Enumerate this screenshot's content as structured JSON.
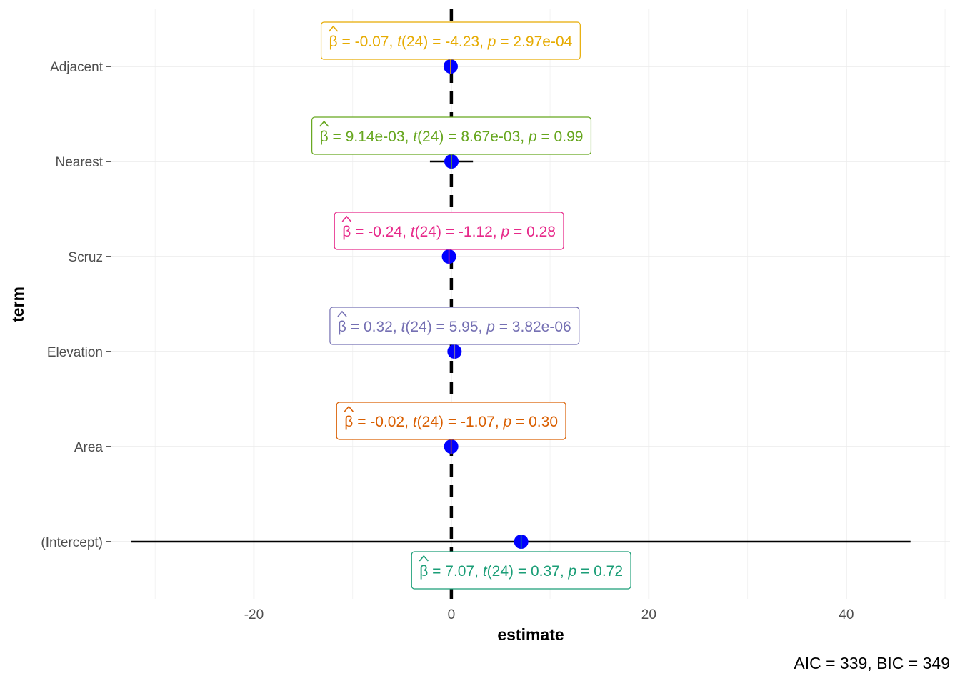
{
  "chart_data": {
    "type": "dot-whisker",
    "title": "",
    "xlabel": "estimate",
    "ylabel": "term",
    "caption": "AIC = 339, BIC = 349",
    "xlim": [
      -34.5,
      50.5
    ],
    "x_ticks": [
      -20,
      0,
      20,
      40
    ],
    "x_tick_labels": [
      "-20",
      "0",
      "20",
      "40"
    ],
    "reference_line": 0,
    "point_color": "#0000ff",
    "terms": [
      {
        "term": "Adjacent",
        "estimate": -0.07,
        "conf_low": -0.11,
        "conf_high": -0.04,
        "color": "#e6ab02",
        "label": {
          "beta": "-0.07",
          "df": "24",
          "t": "-4.23",
          "p": "2.97e-04"
        }
      },
      {
        "term": "Nearest",
        "estimate": 0.00914,
        "conf_low": -2.17,
        "conf_high": 2.19,
        "color": "#66a61e",
        "label": {
          "beta": "9.14e-03",
          "df": "24",
          "t": "8.67e-03",
          "p": "0.99"
        }
      },
      {
        "term": "Scruz",
        "estimate": -0.24,
        "conf_low": -0.69,
        "conf_high": 0.2,
        "color": "#e7298a",
        "label": {
          "beta": "-0.24",
          "df": "24",
          "t": "-1.12",
          "p": "0.28"
        }
      },
      {
        "term": "Elevation",
        "estimate": 0.32,
        "conf_low": 0.21,
        "conf_high": 0.43,
        "color": "#7570b3",
        "label": {
          "beta": "0.32",
          "df": "24",
          "t": "5.95",
          "p": "3.82e-06"
        }
      },
      {
        "term": "Area",
        "estimate": -0.02,
        "conf_low": -0.06,
        "conf_high": 0.02,
        "color": "#d95f02",
        "label": {
          "beta": "-0.02",
          "df": "24",
          "t": "-1.07",
          "p": "0.30"
        }
      },
      {
        "term": "(Intercept)",
        "estimate": 7.07,
        "conf_low": -32.4,
        "conf_high": 46.5,
        "color": "#1b9e77",
        "label": {
          "beta": "7.07",
          "df": "24",
          "t": "0.37",
          "p": "0.72"
        }
      }
    ]
  }
}
